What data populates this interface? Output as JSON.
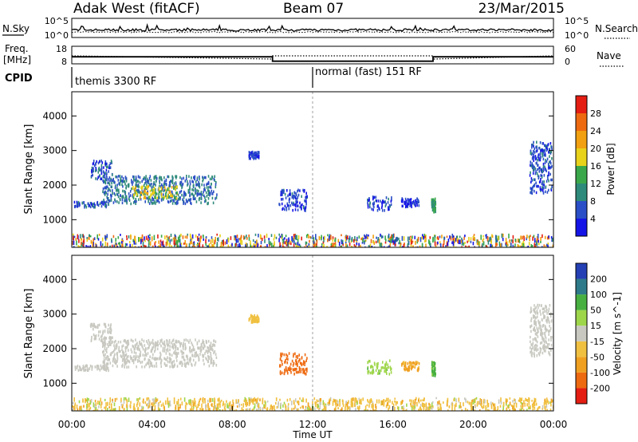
{
  "header": {
    "station": "Adak West (fitACF)",
    "beam": "Beam 07",
    "date": "23/Mar/2015"
  },
  "noise_panel": {
    "left_label": "N.Sky",
    "right_label": "N.Search",
    "left_ticks": [
      "10^5",
      "10^0"
    ],
    "right_ticks": [
      "10^5",
      "10^0"
    ]
  },
  "freq_panel": {
    "left_label_1": "Freq.",
    "left_label_2": "[MHz]",
    "left_ticks": [
      "18",
      "8"
    ],
    "right_label": "Nave",
    "right_ticks": [
      "60",
      "0"
    ],
    "freq_segments": [
      {
        "start": 0,
        "end": 10,
        "mhz": 12.0
      },
      {
        "start": 10,
        "end": 18,
        "mhz": 9.5
      },
      {
        "start": 18,
        "end": 24,
        "mhz": 12.0
      }
    ]
  },
  "cpid_panel": {
    "label": "CPID",
    "programs": [
      {
        "start": 0,
        "name": "themis 3300 RF"
      },
      {
        "start": 12,
        "name": "normal (fast) 151 RF"
      }
    ]
  },
  "chart_data": [
    {
      "type": "heatmap",
      "ylabel": "Slant Range [km]",
      "ylim": [
        200,
        4700
      ],
      "xlim": [
        0,
        24
      ],
      "y_ticks": [
        "1000",
        "2000",
        "3000",
        "4000"
      ],
      "colorbar": {
        "label": "Power [dB]",
        "range": [
          0,
          32
        ],
        "ticks": [
          "4",
          "8",
          "12",
          "16",
          "20",
          "24",
          "28"
        ],
        "colors": [
          "#1414e6",
          "#2b4fc6",
          "#2e8a7a",
          "#3aa84a",
          "#e8d21a",
          "#f0a010",
          "#ee6a10",
          "#e41e12"
        ]
      },
      "echo_regions": [
        {
          "t0": 0.9,
          "t1": 2.0,
          "r0": 2200,
          "r1": 2750,
          "value": 6
        },
        {
          "t0": 1.5,
          "t1": 7.2,
          "r0": 1500,
          "r1": 2300,
          "value": 8
        },
        {
          "t0": 3.0,
          "t1": 5.3,
          "r0": 1650,
          "r1": 2000,
          "value": 18
        },
        {
          "t0": 0.1,
          "t1": 1.8,
          "r0": 1400,
          "r1": 1550,
          "value": 6
        },
        {
          "t0": 8.8,
          "t1": 9.3,
          "r0": 2800,
          "r1": 3000,
          "value": 4
        },
        {
          "t0": 10.3,
          "t1": 11.7,
          "r0": 1300,
          "r1": 1900,
          "value": 5
        },
        {
          "t0": 14.7,
          "t1": 15.9,
          "r0": 1300,
          "r1": 1700,
          "value": 5
        },
        {
          "t0": 16.4,
          "t1": 17.3,
          "r0": 1400,
          "r1": 1650,
          "value": 4
        },
        {
          "t0": 17.9,
          "t1": 18.1,
          "r0": 1250,
          "r1": 1650,
          "value": 12
        },
        {
          "t0": 22.8,
          "t1": 23.9,
          "r0": 1800,
          "r1": 3300,
          "value": 6
        },
        {
          "t0": 0.0,
          "t1": 24.0,
          "r0": 200,
          "r1": 600,
          "value": 14
        }
      ]
    },
    {
      "type": "heatmap",
      "ylabel": "Slant Range [km]",
      "xlabel": "Time UT",
      "ylim": [
        200,
        4700
      ],
      "xlim": [
        0,
        24
      ],
      "y_ticks": [
        "1000",
        "2000",
        "3000",
        "4000"
      ],
      "x_ticks": [
        "00:00",
        "04:00",
        "08:00",
        "12:00",
        "16:00",
        "20:00",
        "00:00"
      ],
      "colorbar": {
        "label": "Velocity [m s^-1]",
        "ticks": [
          "200",
          "100",
          "50",
          "15",
          "-15",
          "-50",
          "-100",
          "-200"
        ],
        "colors": [
          "#2440b4",
          "#2e7a8a",
          "#48b040",
          "#9ed64a",
          "#c8c8c0",
          "#f0c040",
          "#f0a020",
          "#ee6a10",
          "#e41e12"
        ]
      },
      "echo_regions": [
        {
          "t0": 0.9,
          "t1": 2.0,
          "r0": 2200,
          "r1": 2750,
          "value": 0
        },
        {
          "t0": 1.5,
          "t1": 7.2,
          "r0": 1500,
          "r1": 2300,
          "value": 0
        },
        {
          "t0": 0.1,
          "t1": 1.8,
          "r0": 1400,
          "r1": 1550,
          "value": 0
        },
        {
          "t0": 8.8,
          "t1": 9.3,
          "r0": 2800,
          "r1": 3000,
          "value": -30
        },
        {
          "t0": 10.3,
          "t1": 11.7,
          "r0": 1300,
          "r1": 1900,
          "value": -120
        },
        {
          "t0": 14.7,
          "t1": 15.9,
          "r0": 1300,
          "r1": 1700,
          "value": 40
        },
        {
          "t0": 16.4,
          "t1": 17.3,
          "r0": 1400,
          "r1": 1650,
          "value": -60
        },
        {
          "t0": 17.9,
          "t1": 18.1,
          "r0": 1250,
          "r1": 1650,
          "value": 60
        },
        {
          "t0": 22.8,
          "t1": 23.9,
          "r0": 1800,
          "r1": 3300,
          "value": 0
        },
        {
          "t0": 0.0,
          "t1": 24.0,
          "r0": 200,
          "r1": 600,
          "value": -40
        }
      ]
    }
  ]
}
